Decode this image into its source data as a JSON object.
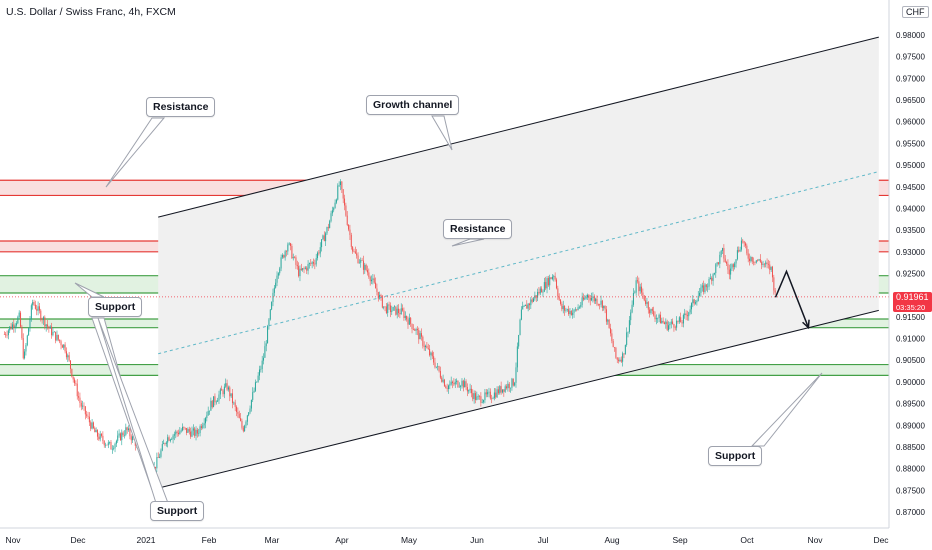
{
  "header": {
    "title": "U.S. Dollar / Swiss Franc, 4h, FXCM",
    "currency": "CHF"
  },
  "price_tag": {
    "price": "0.91961",
    "countdown": "03:35:20"
  },
  "callouts": [
    {
      "id": "resistance-1",
      "text": "Resistance"
    },
    {
      "id": "growth-channel",
      "text": "Growth channel"
    },
    {
      "id": "resistance-2",
      "text": "Resistance"
    },
    {
      "id": "support-1",
      "text": "Support"
    },
    {
      "id": "support-2",
      "text": "Support"
    },
    {
      "id": "support-3",
      "text": "Support"
    }
  ],
  "colors": {
    "up": "#26a69a",
    "down": "#ef5350",
    "resistance_line": "#e53935",
    "resistance_fill": "#f8d7d7",
    "support_line": "#43a047",
    "support_fill": "#d9efd9",
    "channel_line": "#131722",
    "channel_fill": "#f0f0f0",
    "midline": "#5fb8c8",
    "arrow": "#131722"
  },
  "chart_data": {
    "type": "candlestick",
    "symbol": "USDCHF",
    "timeframe": "4h",
    "x_labels": [
      "Nov",
      "Dec",
      "2021",
      "Feb",
      "Mar",
      "Apr",
      "May",
      "Jun",
      "Jul",
      "Aug",
      "Sep",
      "Oct",
      "Nov",
      "Dec"
    ],
    "y_labels": [
      "0.98000",
      "0.97500",
      "0.97000",
      "0.96500",
      "0.96000",
      "0.95500",
      "0.95000",
      "0.94500",
      "0.94000",
      "0.93500",
      "0.93000",
      "0.92500",
      "0.92000",
      "0.91500",
      "0.91000",
      "0.90500",
      "0.90000",
      "0.89500",
      "0.89000",
      "0.88500",
      "0.88000",
      "0.87500",
      "0.87000"
    ],
    "ylim": [
      0.868,
      0.984
    ],
    "last_price": 0.91961,
    "close_path": [
      [
        "2020-10-28",
        0.911
      ],
      [
        "2020-11-04",
        0.915
      ],
      [
        "2020-11-06",
        0.905
      ],
      [
        "2020-11-10",
        0.9185
      ],
      [
        "2020-11-18",
        0.912
      ],
      [
        "2020-11-25",
        0.908
      ],
      [
        "2020-12-02",
        0.895
      ],
      [
        "2020-12-09",
        0.888
      ],
      [
        "2020-12-16",
        0.885
      ],
      [
        "2020-12-23",
        0.889
      ],
      [
        "2020-12-30",
        0.884
      ],
      [
        "2021-01-05",
        0.88
      ],
      [
        "2021-01-11",
        0.887
      ],
      [
        "2021-01-19",
        0.889
      ],
      [
        "2021-01-26",
        0.888
      ],
      [
        "2021-02-02",
        0.895
      ],
      [
        "2021-02-09",
        0.899
      ],
      [
        "2021-02-16",
        0.889
      ],
      [
        "2021-02-25",
        0.905
      ],
      [
        "2021-03-03",
        0.925
      ],
      [
        "2021-03-08",
        0.932
      ],
      [
        "2021-03-13",
        0.925
      ],
      [
        "2021-03-20",
        0.928
      ],
      [
        "2021-03-26",
        0.936
      ],
      [
        "2021-03-31",
        0.946
      ],
      [
        "2021-04-06",
        0.93
      ],
      [
        "2021-04-13",
        0.925
      ],
      [
        "2021-04-20",
        0.917
      ],
      [
        "2021-04-28",
        0.916
      ],
      [
        "2021-05-04",
        0.912
      ],
      [
        "2021-05-12",
        0.905
      ],
      [
        "2021-05-18",
        0.899
      ],
      [
        "2021-05-25",
        0.9
      ],
      [
        "2021-06-01",
        0.896
      ],
      [
        "2021-06-08",
        0.897
      ],
      [
        "2021-06-14",
        0.899
      ],
      [
        "2021-06-18",
        0.9
      ],
      [
        "2021-06-21",
        0.916
      ],
      [
        "2021-06-28",
        0.92
      ],
      [
        "2021-07-06",
        0.925
      ],
      [
        "2021-07-09",
        0.917
      ],
      [
        "2021-07-15",
        0.916
      ],
      [
        "2021-07-21",
        0.92
      ],
      [
        "2021-07-28",
        0.918
      ],
      [
        "2021-08-03",
        0.905
      ],
      [
        "2021-08-06",
        0.906
      ],
      [
        "2021-08-12",
        0.923
      ],
      [
        "2021-08-19",
        0.916
      ],
      [
        "2021-08-26",
        0.913
      ],
      [
        "2021-09-02",
        0.914
      ],
      [
        "2021-09-09",
        0.92
      ],
      [
        "2021-09-14",
        0.923
      ],
      [
        "2021-09-20",
        0.93
      ],
      [
        "2021-09-23",
        0.925
      ],
      [
        "2021-09-29",
        0.933
      ],
      [
        "2021-10-01",
        0.929
      ],
      [
        "2021-10-06",
        0.928
      ],
      [
        "2021-10-12",
        0.926
      ],
      [
        "2021-10-14",
        0.9196
      ]
    ],
    "zones": [
      {
        "kind": "resistance",
        "from": 0.943,
        "to": 0.9465
      },
      {
        "kind": "resistance",
        "from": 0.93,
        "to": 0.9325
      },
      {
        "kind": "support",
        "from": 0.9205,
        "to": 0.9245
      },
      {
        "kind": "support",
        "from": 0.9125,
        "to": 0.9145
      },
      {
        "kind": "support",
        "from": 0.9015,
        "to": 0.904
      }
    ],
    "channel": {
      "upper": [
        [
          "2021-01-07",
          0.938
        ],
        [
          "2021-11-30",
          0.9795
        ]
      ],
      "lower": [
        [
          "2021-01-07",
          0.8755
        ],
        [
          "2021-11-30",
          0.9165
        ]
      ],
      "mid": [
        [
          "2021-01-07",
          0.9065
        ],
        [
          "2021-11-30",
          0.9485
        ]
      ]
    },
    "forecast_arrow": [
      [
        "2021-10-14",
        0.9195
      ],
      [
        "2021-10-19",
        0.9255
      ],
      [
        "2021-10-29",
        0.9125
      ]
    ]
  }
}
